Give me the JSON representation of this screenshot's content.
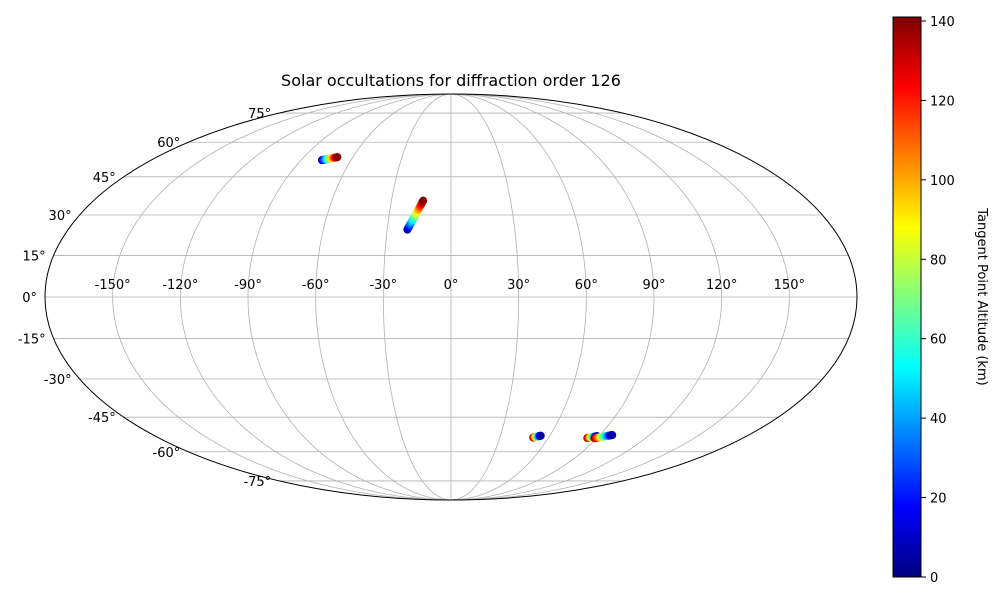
{
  "chart_data": {
    "type": "scatter",
    "projection": "mollweide",
    "title": "Solar occultations for diffraction order 126",
    "grid": true,
    "lon_ticks": [
      -150,
      -120,
      -90,
      -60,
      -30,
      0,
      30,
      60,
      90,
      120,
      150
    ],
    "lat_ticks": [
      -75,
      -60,
      -45,
      -30,
      -15,
      0,
      15,
      30,
      45,
      60,
      75
    ],
    "lon_tick_labels": [
      "-150°",
      "-120°",
      "-90°",
      "-60°",
      "-30°",
      "0°",
      "30°",
      "60°",
      "90°",
      "120°",
      "150°"
    ],
    "lat_tick_labels": [
      "-75°",
      "-60°",
      "-45°",
      "-30°",
      "-15°",
      "0°",
      "15°",
      "30°",
      "45°",
      "60°",
      "75°"
    ],
    "colorbar": {
      "label": "Tangent Point Altitude (km)",
      "colormap": "jet",
      "range": [
        0,
        141
      ],
      "ticks": [
        0,
        20,
        40,
        60,
        80,
        100,
        120,
        140
      ],
      "tick_labels": [
        "0",
        "20",
        "40",
        "60",
        "80",
        "100",
        "120",
        "140"
      ]
    },
    "tracks": [
      {
        "start": [
          -77.5,
          52.0
        ],
        "end": [
          -69.5,
          53.3
        ],
        "alt_start": 5,
        "alt_end": 140
      },
      {
        "start": [
          -20.5,
          24.5
        ],
        "end": [
          -14.0,
          35.5
        ],
        "alt_start": 5,
        "alt_end": 140
      },
      {
        "start": [
          50.5,
          -53.6
        ],
        "end": [
          54.5,
          -52.8
        ],
        "alt_start": 140,
        "alt_end": 5
      },
      {
        "start": [
          84.0,
          -53.8
        ],
        "end": [
          89.0,
          -53.0
        ],
        "alt_start": 140,
        "alt_end": 5
      },
      {
        "start": [
          88.5,
          -53.9
        ],
        "end": [
          97.5,
          -52.5
        ],
        "alt_start": 140,
        "alt_end": 5
      }
    ]
  }
}
